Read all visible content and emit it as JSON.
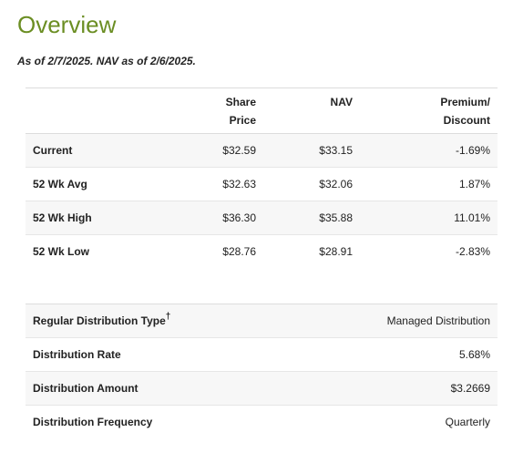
{
  "title": "Overview",
  "as_of": "As of 2/7/2025. NAV as of 2/6/2025.",
  "performance": {
    "headers": {
      "share_price_line1": "Share",
      "share_price_line2": "Price",
      "nav": "NAV",
      "premium_line1": "Premium/",
      "premium_line2": "Discount"
    },
    "rows": [
      {
        "label": "Current",
        "share_price": "$32.59",
        "nav": "$33.15",
        "premium": "-1.69%"
      },
      {
        "label": "52 Wk Avg",
        "share_price": "$32.63",
        "nav": "$32.06",
        "premium": "1.87%"
      },
      {
        "label": "52 Wk High",
        "share_price": "$36.30",
        "nav": "$35.88",
        "premium": "11.01%"
      },
      {
        "label": "52 Wk Low",
        "share_price": "$28.76",
        "nav": "$28.91",
        "premium": "-2.83%"
      }
    ]
  },
  "distribution": {
    "rows": [
      {
        "label": "Regular Distribution Type",
        "mark": "†",
        "value": "Managed Distribution"
      },
      {
        "label": "Distribution Rate",
        "value": "5.68%"
      },
      {
        "label": "Distribution Amount",
        "value": "$3.2669"
      },
      {
        "label": "Distribution Frequency",
        "value": "Quarterly"
      }
    ]
  }
}
